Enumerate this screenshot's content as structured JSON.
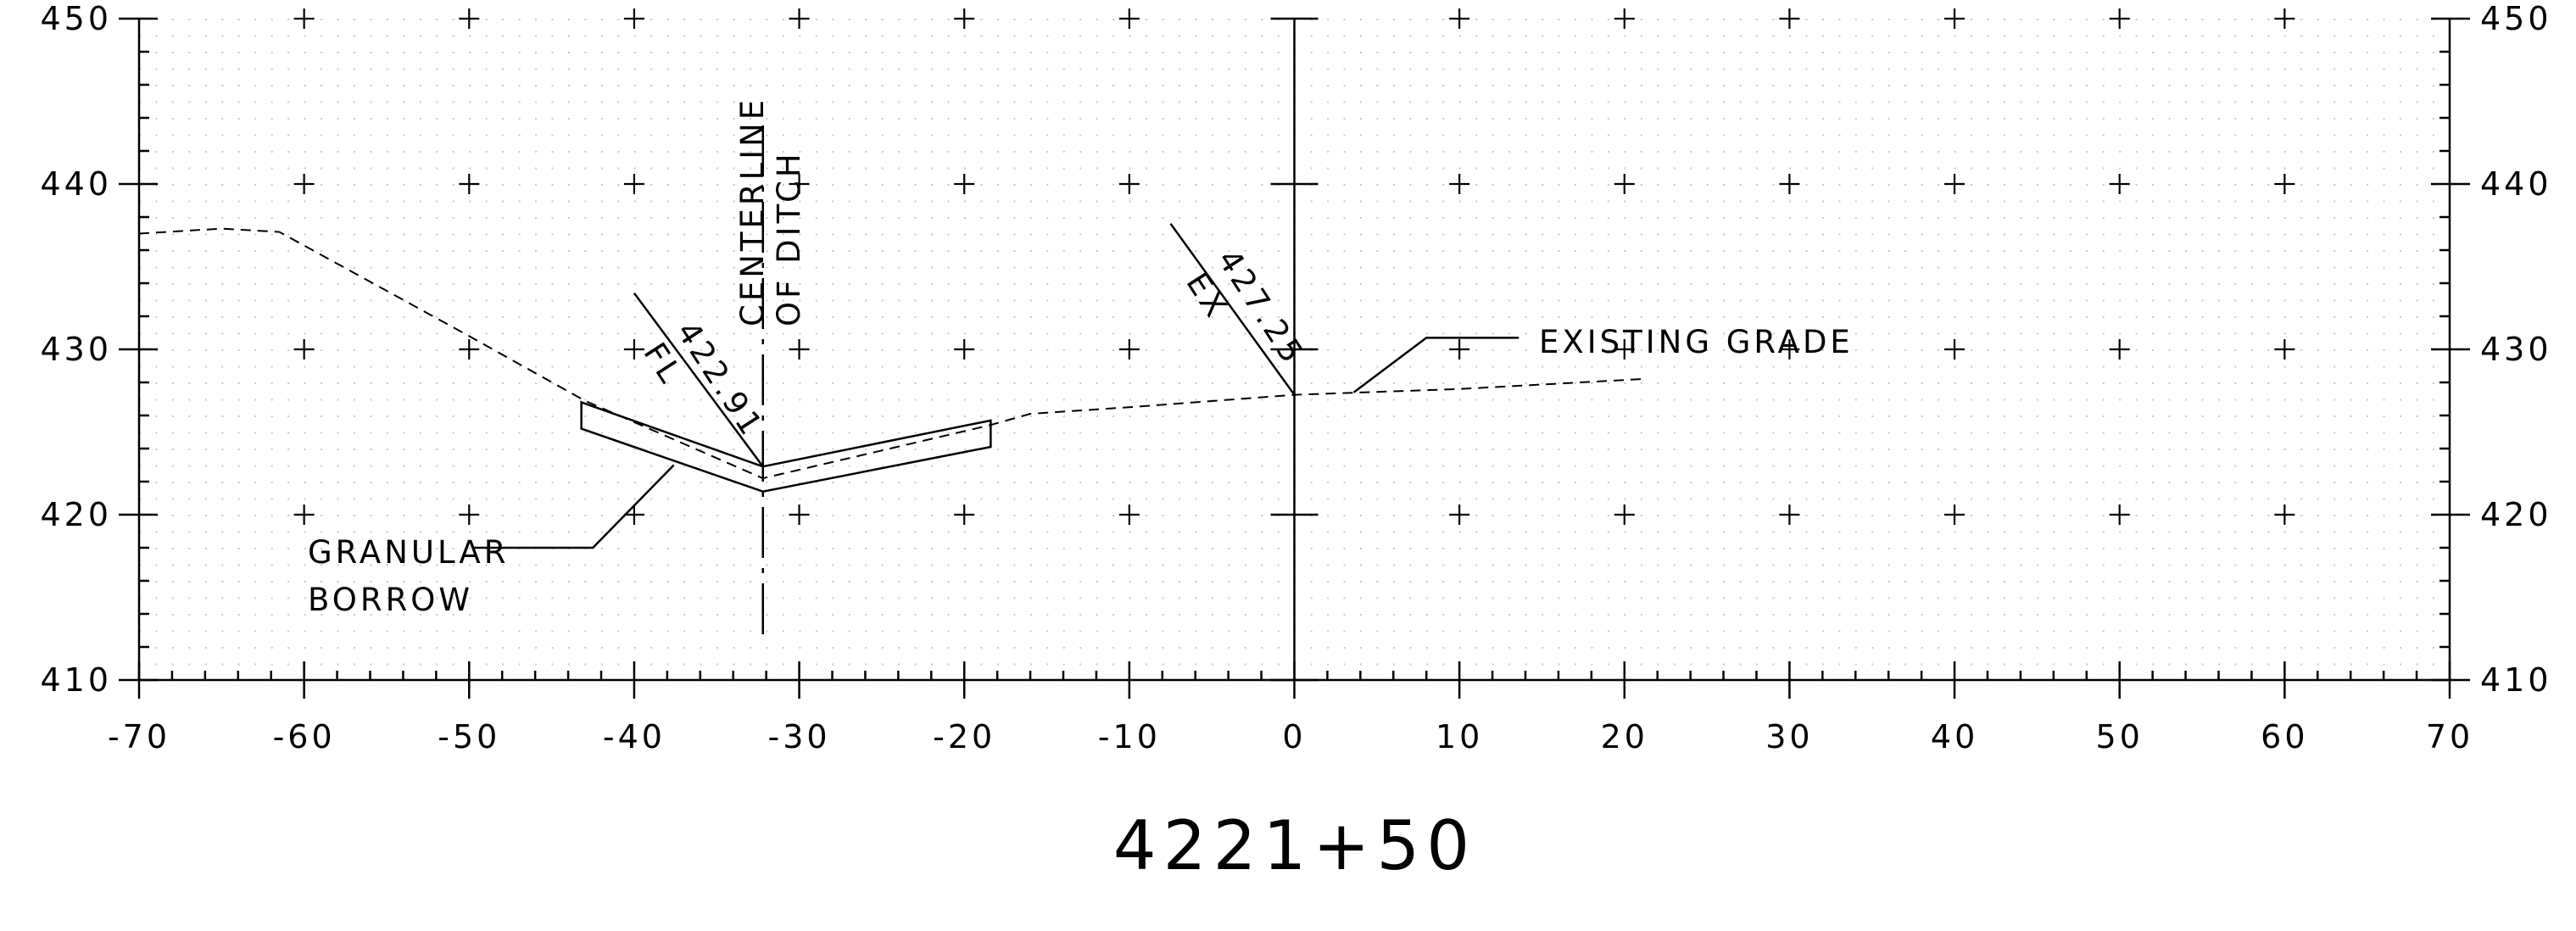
{
  "chart_data": {
    "type": "cross-section",
    "title": "4221+50",
    "x_ticks": [
      -70,
      -60,
      -50,
      -40,
      -30,
      -20,
      -10,
      0,
      10,
      20,
      30,
      40,
      50,
      60,
      70
    ],
    "y_ticks": [
      410,
      420,
      430,
      440,
      450
    ],
    "xlim": [
      -70,
      70
    ],
    "ylim": [
      410,
      450
    ],
    "grid": "dotted with cross marks",
    "centerline_offset": 0,
    "existing_grade": {
      "name": "EXISTING GRADE",
      "points": [
        [
          -70,
          437
        ],
        [
          -65,
          437.3
        ],
        [
          -61.5,
          437.1
        ],
        [
          -50,
          430.8
        ],
        [
          -43,
          426.9
        ],
        [
          -32.2,
          422.2
        ],
        [
          -18.5,
          425.4
        ],
        [
          -16,
          426.1
        ],
        [
          -10,
          426.5
        ],
        [
          0,
          427.25
        ],
        [
          10,
          427.6
        ],
        [
          21,
          428.2
        ]
      ]
    },
    "ditch": {
      "centerline_offset": -32.2,
      "top_points": [
        [
          -43.2,
          426.8
        ],
        [
          -32.2,
          422.91
        ],
        [
          -18.4,
          425.7
        ]
      ],
      "bottom_points": [
        [
          -43.2,
          425.2
        ],
        [
          -32.2,
          421.4
        ],
        [
          -18.4,
          424.1
        ]
      ]
    },
    "annotations": [
      {
        "lines": [
          "CENTERLINE",
          "OF DITCH"
        ]
      },
      {
        "value": "422.91",
        "code": "FL"
      },
      {
        "value": "427.25",
        "code": "EX"
      },
      {
        "lines": [
          "GRANULAR",
          "BORROW"
        ]
      },
      {
        "text": "EXISTING GRADE"
      }
    ]
  }
}
